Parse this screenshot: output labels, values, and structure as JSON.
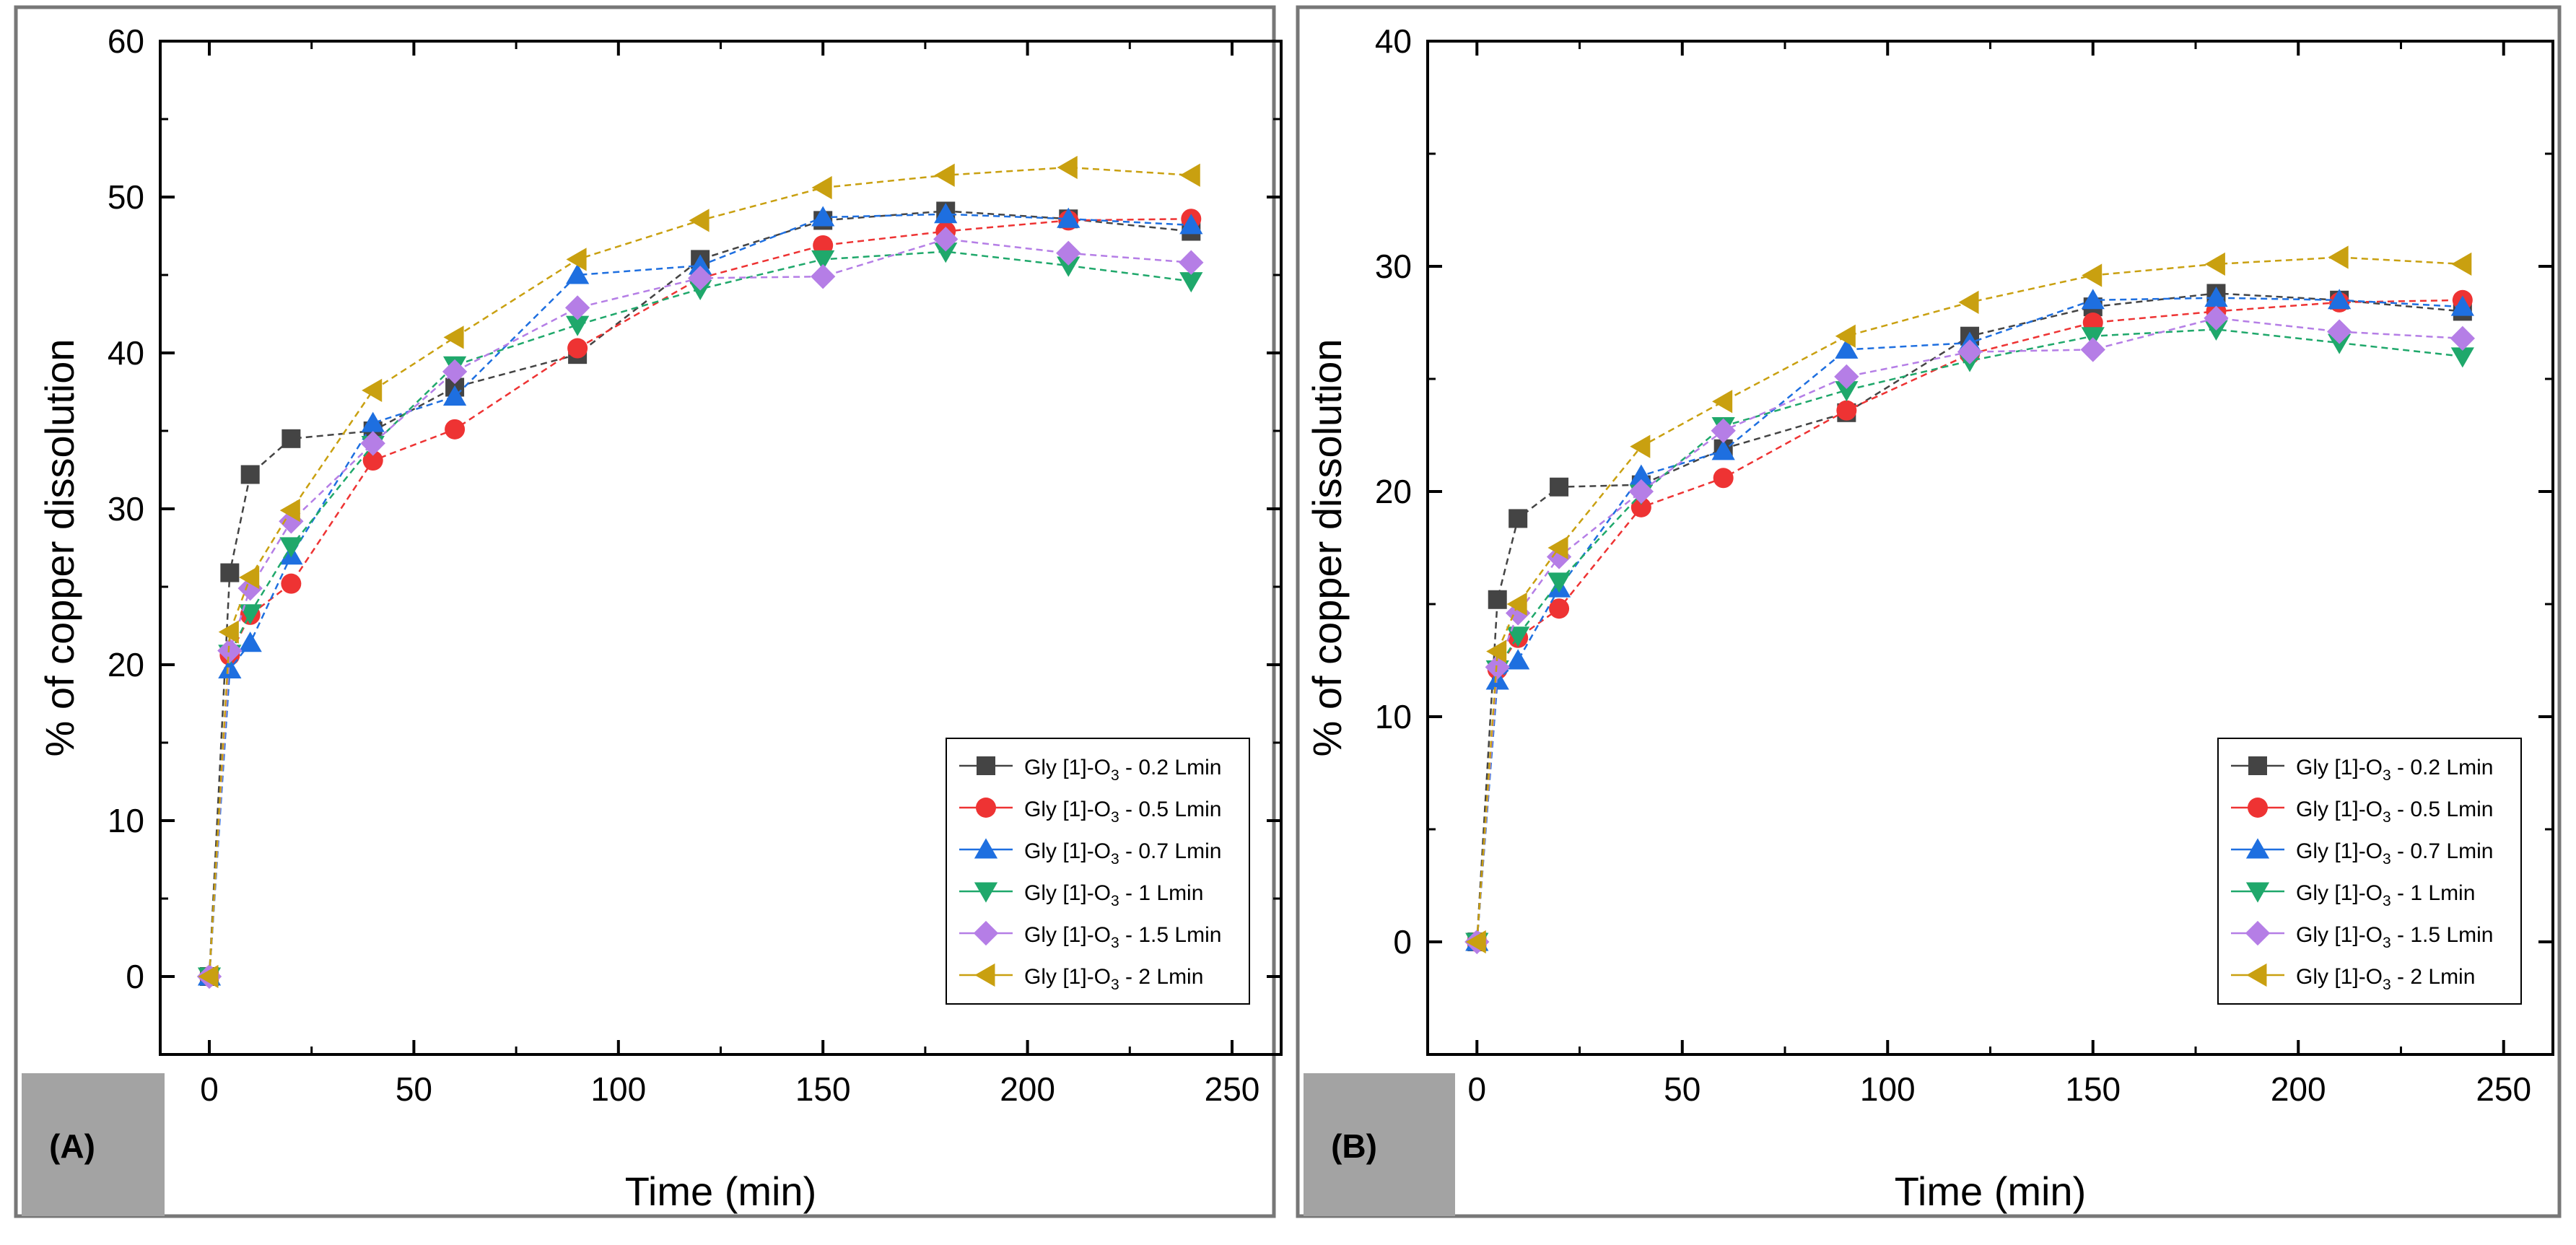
{
  "chart_data": [
    {
      "type": "line",
      "panel_label": "(A)",
      "xlabel": "Time (min)",
      "ylabel": "% of copper dissolution",
      "xlim": [
        -12,
        262
      ],
      "ylim": [
        -5,
        60
      ],
      "xticks": [
        0,
        50,
        100,
        150,
        200,
        250
      ],
      "yticks": [
        0,
        10,
        20,
        30,
        40,
        50,
        60
      ],
      "legend_position": "bottom-right",
      "x": [
        0,
        5,
        10,
        20,
        40,
        60,
        90,
        120,
        150,
        180,
        210,
        240
      ],
      "series": [
        {
          "name": "Gly [1]-O",
          "sub": "3",
          "suffix": " - 0.2 Lmin",
          "color": "#444444",
          "marker": "square",
          "values": [
            0,
            25.9,
            32.2,
            34.5,
            35.0,
            37.8,
            39.9,
            46.0,
            48.5,
            49.1,
            48.6,
            47.8
          ]
        },
        {
          "name": "Gly [1]-O",
          "sub": "3",
          "suffix": " - 0.5 Lmin",
          "color": "#ee3333",
          "marker": "circle",
          "values": [
            0,
            20.6,
            23.2,
            25.2,
            33.1,
            35.1,
            40.3,
            44.8,
            46.9,
            47.8,
            48.5,
            48.6
          ]
        },
        {
          "name": "Gly [1]-O",
          "sub": "3",
          "suffix": " - 0.7 Lmin",
          "color": "#1e6fe0",
          "marker": "triangle-up",
          "values": [
            0,
            19.7,
            21.4,
            27.0,
            35.5,
            37.2,
            45.0,
            45.6,
            48.7,
            48.9,
            48.6,
            48.2
          ]
        },
        {
          "name": "Gly [1]-O",
          "sub": "3",
          "suffix": " - 1 Lmin",
          "color": "#1fa86b",
          "marker": "triangle-down",
          "values": [
            0,
            20.7,
            23.3,
            27.6,
            34.1,
            39.2,
            41.8,
            44.1,
            46.0,
            46.5,
            45.6,
            44.6
          ]
        },
        {
          "name": "Gly [1]-O",
          "sub": "3",
          "suffix": " - 1.5 Lmin",
          "color": "#b57ee6",
          "marker": "diamond",
          "values": [
            0,
            20.9,
            24.9,
            29.2,
            34.2,
            38.8,
            42.9,
            44.8,
            44.9,
            47.3,
            46.4,
            45.8
          ]
        },
        {
          "name": "Gly [1]-O",
          "sub": "3",
          "suffix": " - 2 Lmin",
          "color": "#c9a010",
          "marker": "triangle-left",
          "values": [
            0,
            22.1,
            25.6,
            29.9,
            37.6,
            41.0,
            46.0,
            48.5,
            50.6,
            51.4,
            51.9,
            51.4
          ]
        }
      ]
    },
    {
      "type": "line",
      "panel_label": "(B)",
      "xlabel": "Time (min)",
      "ylabel": "% of copper dissolution",
      "xlim": [
        -12,
        262
      ],
      "ylim": [
        -5,
        40
      ],
      "xticks": [
        0,
        50,
        100,
        150,
        200,
        250
      ],
      "yticks": [
        0,
        10,
        20,
        30,
        40
      ],
      "legend_position": "bottom-right",
      "x": [
        0,
        5,
        10,
        20,
        40,
        60,
        90,
        120,
        150,
        180,
        210,
        240
      ],
      "series": [
        {
          "name": "Gly [1]-O",
          "sub": "3",
          "suffix": " - 0.2 Lmin",
          "color": "#444444",
          "marker": "square",
          "values": [
            0,
            15.2,
            18.8,
            20.2,
            20.3,
            21.9,
            23.5,
            26.9,
            28.2,
            28.8,
            28.5,
            28.0
          ]
        },
        {
          "name": "Gly [1]-O",
          "sub": "3",
          "suffix": " - 0.5 Lmin",
          "color": "#ee3333",
          "marker": "circle",
          "values": [
            0,
            12.1,
            13.5,
            14.8,
            19.3,
            20.6,
            23.6,
            26.1,
            27.5,
            28.0,
            28.4,
            28.5
          ]
        },
        {
          "name": "Gly [1]-O",
          "sub": "3",
          "suffix": " - 0.7 Lmin",
          "color": "#1e6fe0",
          "marker": "triangle-up",
          "values": [
            0,
            11.6,
            12.5,
            15.7,
            20.7,
            21.8,
            26.3,
            26.6,
            28.5,
            28.6,
            28.5,
            28.2
          ]
        },
        {
          "name": "Gly [1]-O",
          "sub": "3",
          "suffix": " - 1 Lmin",
          "color": "#1fa86b",
          "marker": "triangle-down",
          "values": [
            0,
            12.1,
            13.6,
            16.0,
            19.9,
            22.9,
            24.5,
            25.8,
            26.9,
            27.2,
            26.6,
            26.0
          ]
        },
        {
          "name": "Gly [1]-O",
          "sub": "3",
          "suffix": " - 1.5 Lmin",
          "color": "#b57ee6",
          "marker": "diamond",
          "values": [
            0,
            12.2,
            14.6,
            17.1,
            20.0,
            22.7,
            25.1,
            26.2,
            26.3,
            27.7,
            27.1,
            26.8
          ]
        },
        {
          "name": "Gly [1]-O",
          "sub": "3",
          "suffix": " - 2 Lmin",
          "color": "#c9a010",
          "marker": "triangle-left",
          "values": [
            0,
            12.9,
            15.0,
            17.5,
            22.0,
            24.0,
            26.9,
            28.4,
            29.6,
            30.1,
            30.4,
            30.1
          ]
        }
      ]
    }
  ]
}
